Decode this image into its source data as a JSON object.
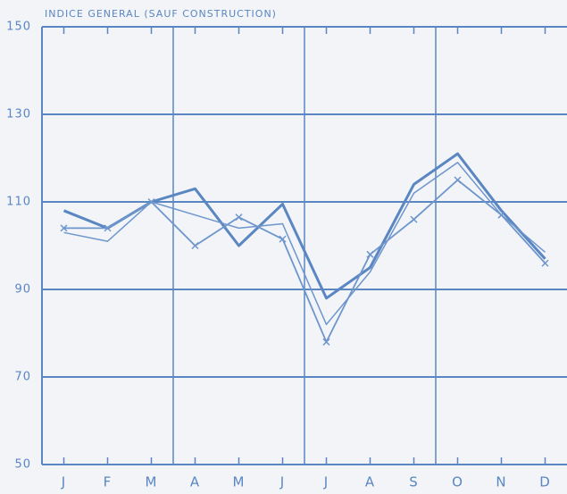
{
  "chart_data": {
    "type": "line",
    "title": "INDICE GENERAL (SAUF CONSTRUCTION)",
    "categories": [
      "J",
      "F",
      "M",
      "A",
      "M",
      "J",
      "J",
      "A",
      "S",
      "O",
      "N",
      "D"
    ],
    "series": [
      {
        "color": "#5a86c2",
        "values": [
          108,
          104,
          110,
          113,
          100,
          109.5,
          88,
          95,
          114,
          121,
          108,
          97
        ]
      },
      {
        "color": "#6e96cc",
        "values": [
          103,
          101,
          110,
          107,
          104,
          105,
          82,
          94,
          112,
          119,
          107,
          98.5
        ]
      },
      {
        "color": "#6e96cc",
        "values": [
          104,
          104,
          110,
          100,
          106.5,
          101.5,
          78,
          98,
          106,
          115,
          107,
          96
        ]
      }
    ],
    "ylim": [
      50,
      150
    ],
    "yticks": [
      50,
      70,
      90,
      110,
      130,
      150
    ],
    "grid": true
  }
}
